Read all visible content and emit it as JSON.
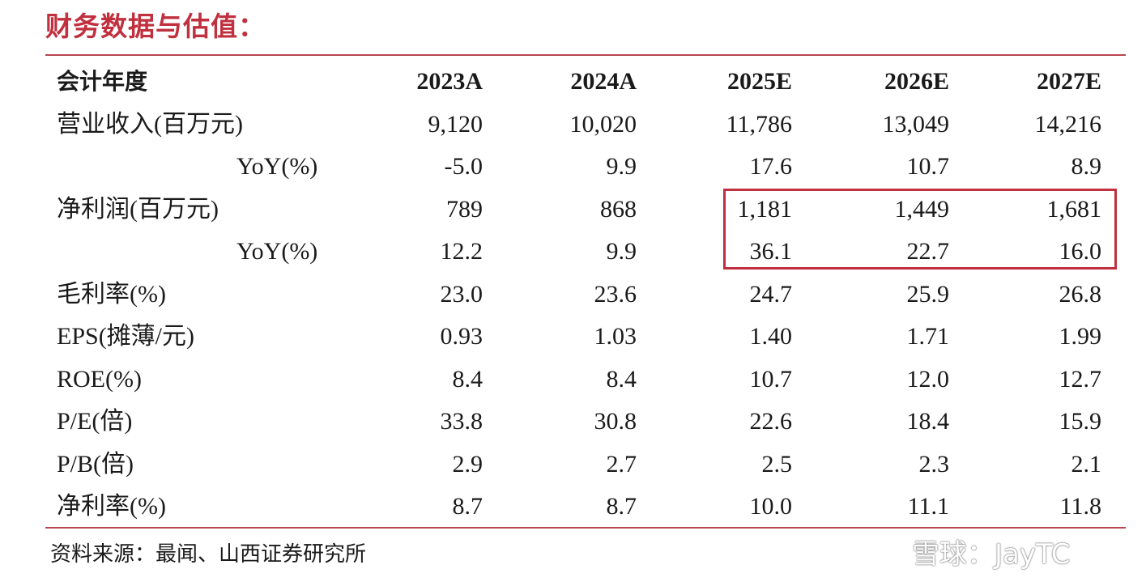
{
  "title": "财务数据与估值：",
  "table": {
    "header": {
      "label": "会计年度",
      "years": [
        "2023A",
        "2024A",
        "2025E",
        "2026E",
        "2027E"
      ]
    },
    "rows": [
      {
        "label": "营业收入(百万元)",
        "indent": false,
        "values": [
          "9,120",
          "10,020",
          "11,786",
          "13,049",
          "14,216"
        ]
      },
      {
        "label": "YoY(%)",
        "indent": true,
        "values": [
          "-5.0",
          "9.9",
          "17.6",
          "10.7",
          "8.9"
        ]
      },
      {
        "label": "净利润(百万元)",
        "indent": false,
        "values": [
          "789",
          "868",
          "1,181",
          "1,449",
          "1,681"
        ]
      },
      {
        "label": "YoY(%)",
        "indent": true,
        "values": [
          "12.2",
          "9.9",
          "36.1",
          "22.7",
          "16.0"
        ]
      },
      {
        "label": "毛利率(%)",
        "indent": false,
        "values": [
          "23.0",
          "23.6",
          "24.7",
          "25.9",
          "26.8"
        ]
      },
      {
        "label": "EPS(摊薄/元)",
        "indent": false,
        "values": [
          "0.93",
          "1.03",
          "1.40",
          "1.71",
          "1.99"
        ]
      },
      {
        "label": "ROE(%)",
        "indent": false,
        "values": [
          "8.4",
          "8.4",
          "10.7",
          "12.0",
          "12.7"
        ]
      },
      {
        "label": "P/E(倍)",
        "indent": false,
        "values": [
          "33.8",
          "30.8",
          "22.6",
          "18.4",
          "15.9"
        ]
      },
      {
        "label": "P/B(倍)",
        "indent": false,
        "values": [
          "2.9",
          "2.7",
          "2.5",
          "2.3",
          "2.1"
        ]
      },
      {
        "label": "净利率(%)",
        "indent": false,
        "values": [
          "8.7",
          "8.7",
          "10.0",
          "11.1",
          "11.8"
        ]
      }
    ]
  },
  "highlight": {
    "color": "#c0303e",
    "rows": [
      2,
      3
    ],
    "columns": [
      2,
      3,
      4
    ]
  },
  "source": "资料来源：最闻、山西证券研究所",
  "watermark": {
    "text": "雪球：JayTC",
    "icon": "snowball-logo-icon"
  },
  "colors": {
    "title": "#c0303e",
    "rule": "#b8454f",
    "text": "#1a1a1a"
  }
}
